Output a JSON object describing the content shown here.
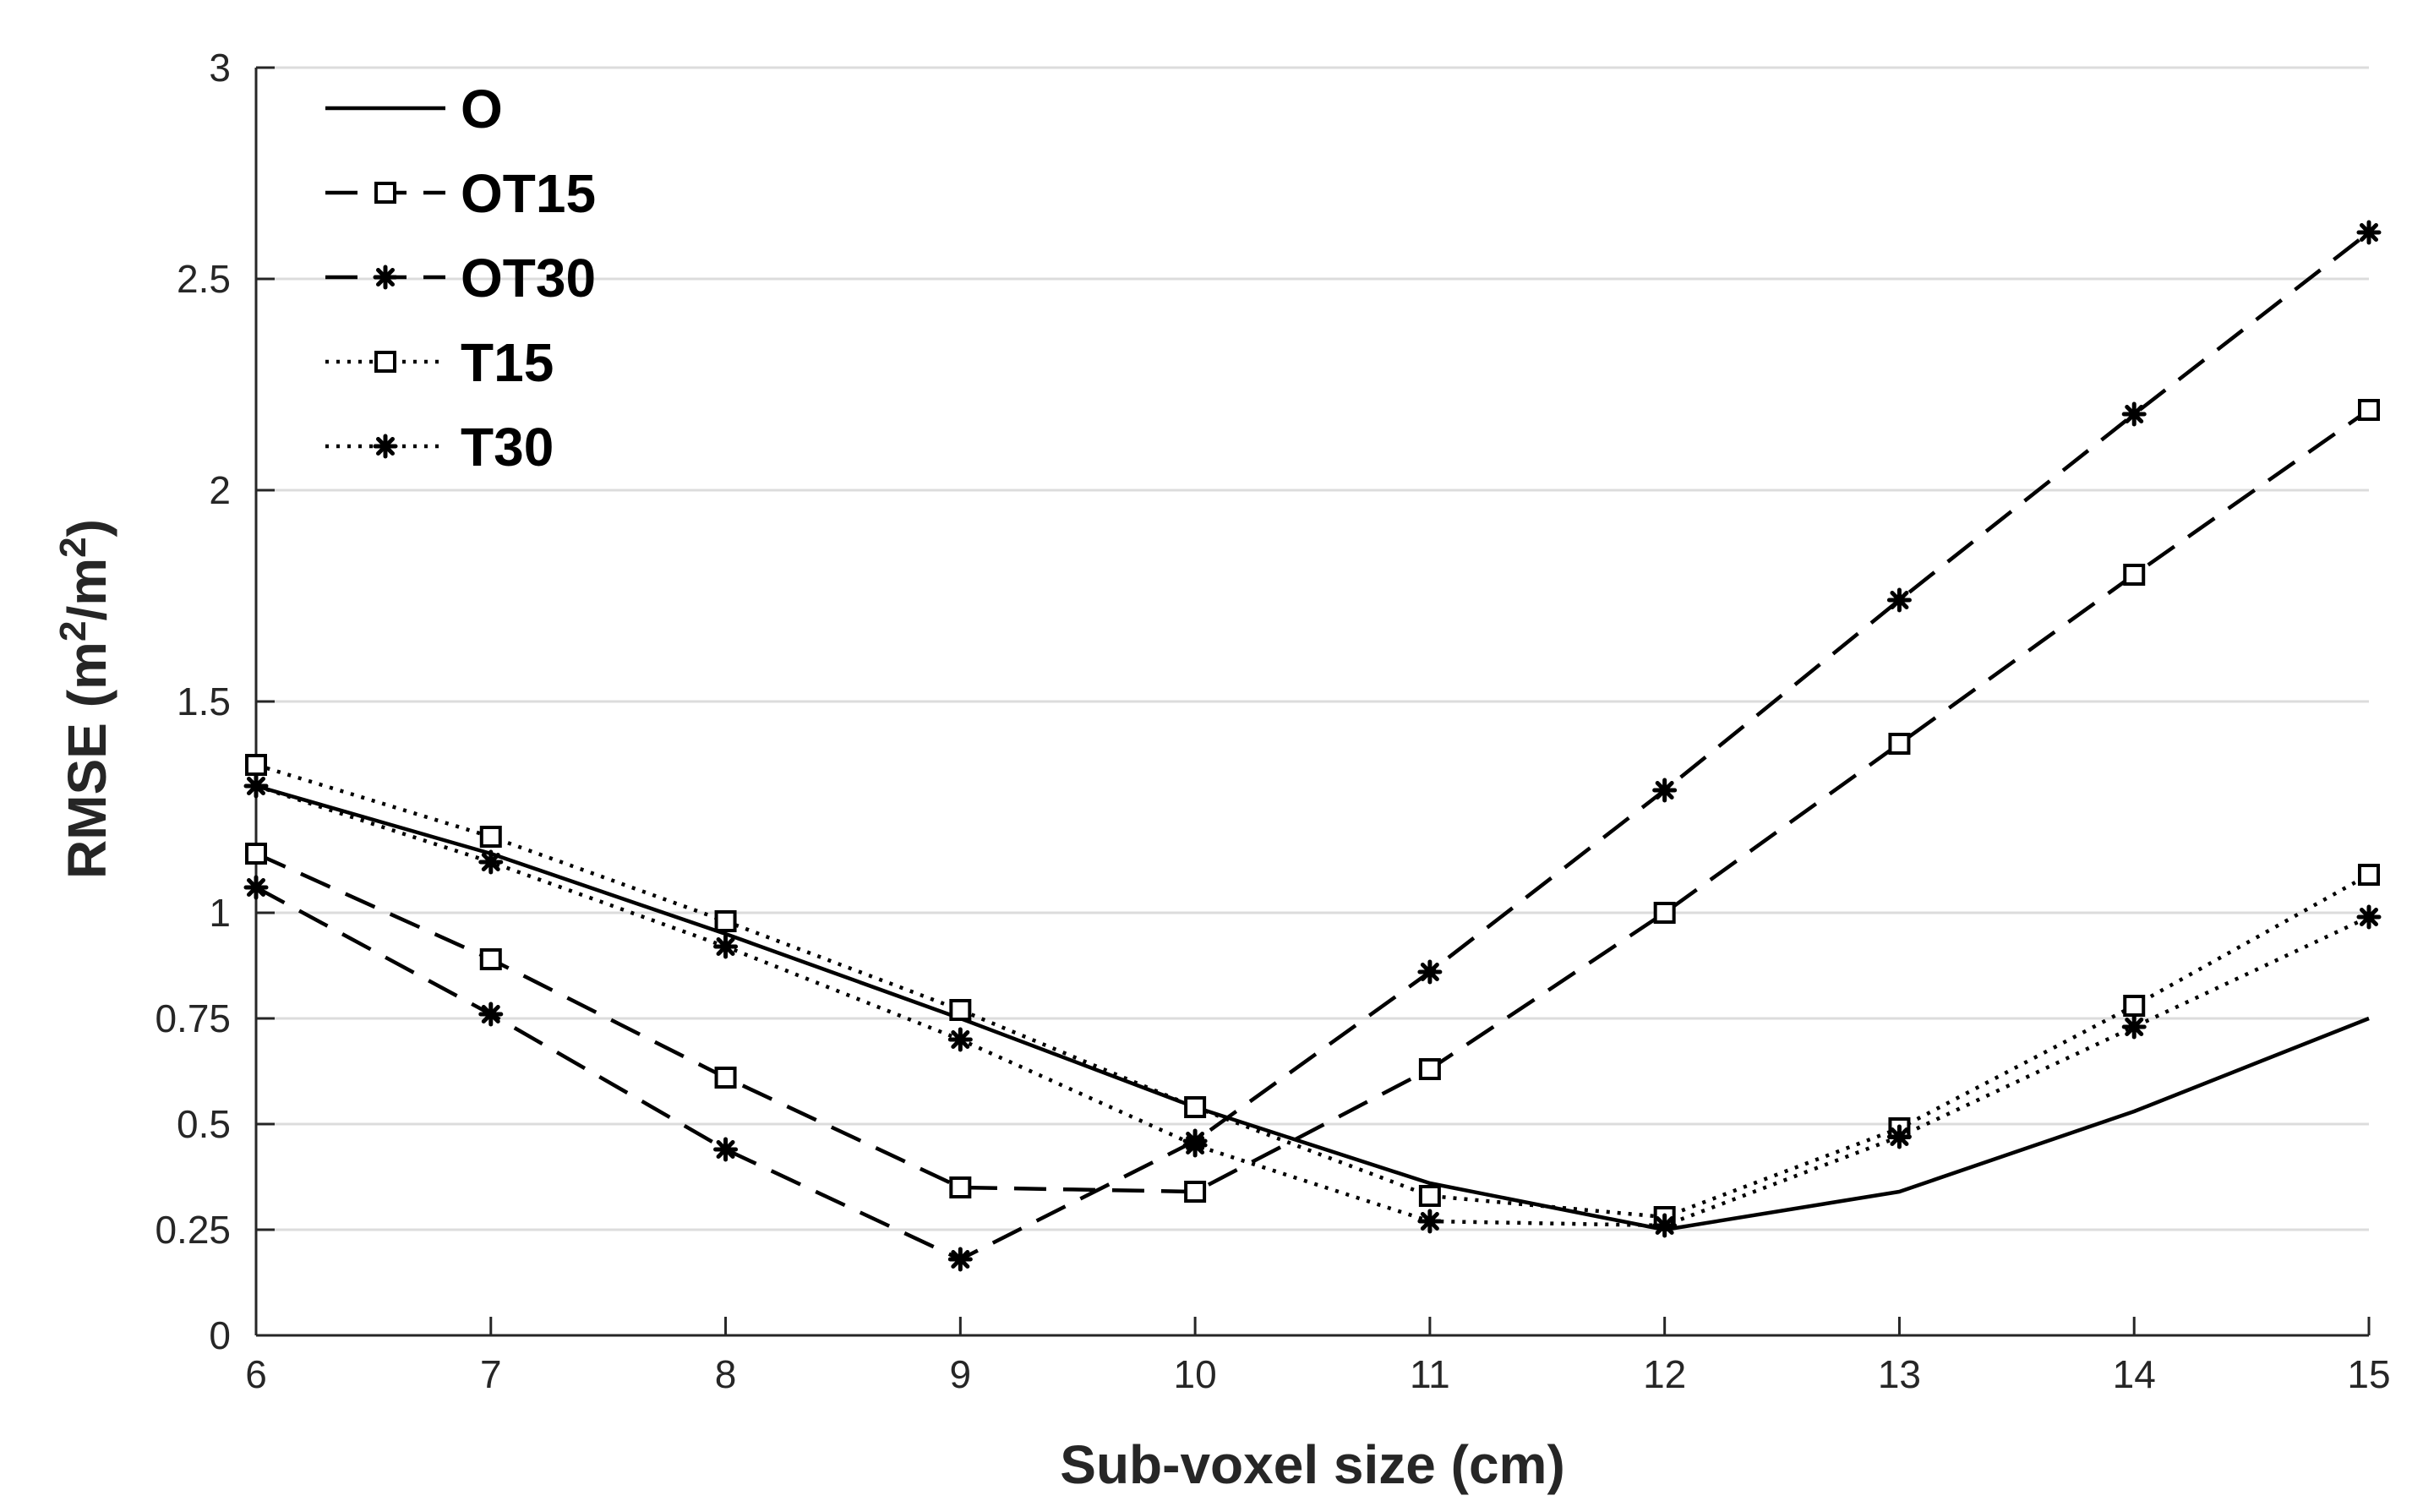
{
  "chart_data": {
    "type": "line",
    "title": "",
    "xlabel": "Sub-voxel size (cm)",
    "ylabel_main": "RMSE (m",
    "ylabel_sup1": "2",
    "ylabel_mid": "/m",
    "ylabel_sup2": "2",
    "ylabel_end": ")",
    "x": [
      6,
      7,
      8,
      9,
      10,
      11,
      12,
      13,
      14,
      15
    ],
    "xlim": [
      6,
      15
    ],
    "ylim": [
      0,
      3
    ],
    "x_ticks": [
      6,
      7,
      8,
      9,
      10,
      11,
      12,
      13,
      14,
      15
    ],
    "x_tick_labels": [
      "6",
      "7",
      "8",
      "9",
      "10",
      "11",
      "12",
      "13",
      "14",
      "15"
    ],
    "y_ticks": [
      0,
      0.25,
      0.5,
      0.75,
      1,
      1.5,
      2,
      2.5,
      3
    ],
    "y_tick_labels": [
      "0",
      "0.25",
      "0.5",
      "0.75",
      "1",
      "1.5",
      "2",
      "2.5",
      "3"
    ],
    "grid": "horizontal",
    "legend_position": "top-left",
    "series": [
      {
        "name": "O",
        "line": "solid",
        "marker": "none",
        "values": [
          1.3,
          1.14,
          0.95,
          0.75,
          0.54,
          0.36,
          0.25,
          0.34,
          0.53,
          0.75
        ]
      },
      {
        "name": "OT15",
        "line": "dashed",
        "marker": "square",
        "values": [
          1.14,
          0.89,
          0.61,
          0.35,
          0.34,
          0.63,
          1.0,
          1.4,
          1.8,
          2.19
        ]
      },
      {
        "name": "OT30",
        "line": "dashed",
        "marker": "star",
        "values": [
          1.06,
          0.76,
          0.44,
          0.18,
          0.46,
          0.86,
          1.29,
          1.74,
          2.18,
          2.61
        ]
      },
      {
        "name": "T15",
        "line": "dotted",
        "marker": "square",
        "values": [
          1.35,
          1.18,
          0.98,
          0.77,
          0.54,
          0.33,
          0.28,
          0.49,
          0.78,
          1.09
        ]
      },
      {
        "name": "T30",
        "line": "dotted",
        "marker": "star",
        "values": [
          1.3,
          1.12,
          0.92,
          0.7,
          0.45,
          0.27,
          0.26,
          0.47,
          0.73,
          0.99
        ]
      }
    ]
  }
}
